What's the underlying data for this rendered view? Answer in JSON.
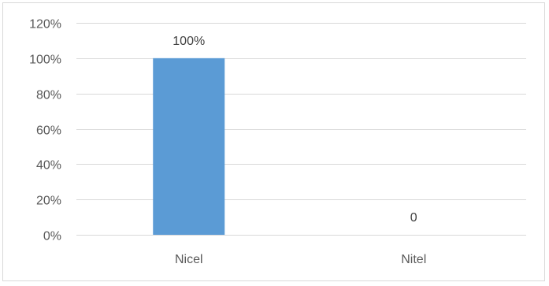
{
  "chart_data": {
    "type": "bar",
    "categories": [
      "Nicel",
      "Nitel"
    ],
    "values": [
      100,
      0
    ],
    "data_labels": [
      "100%",
      "0"
    ],
    "ylim": [
      0,
      120
    ],
    "yticks": [
      0,
      20,
      40,
      60,
      80,
      100,
      120
    ],
    "ytick_labels": [
      "0%",
      "20%",
      "40%",
      "60%",
      "80%",
      "100%",
      "120%"
    ],
    "title": "",
    "xlabel": "",
    "ylabel": "",
    "grid": true,
    "legend": "none",
    "bar_color": "#5b9bd5",
    "grid_color": "#d9d9d9"
  }
}
